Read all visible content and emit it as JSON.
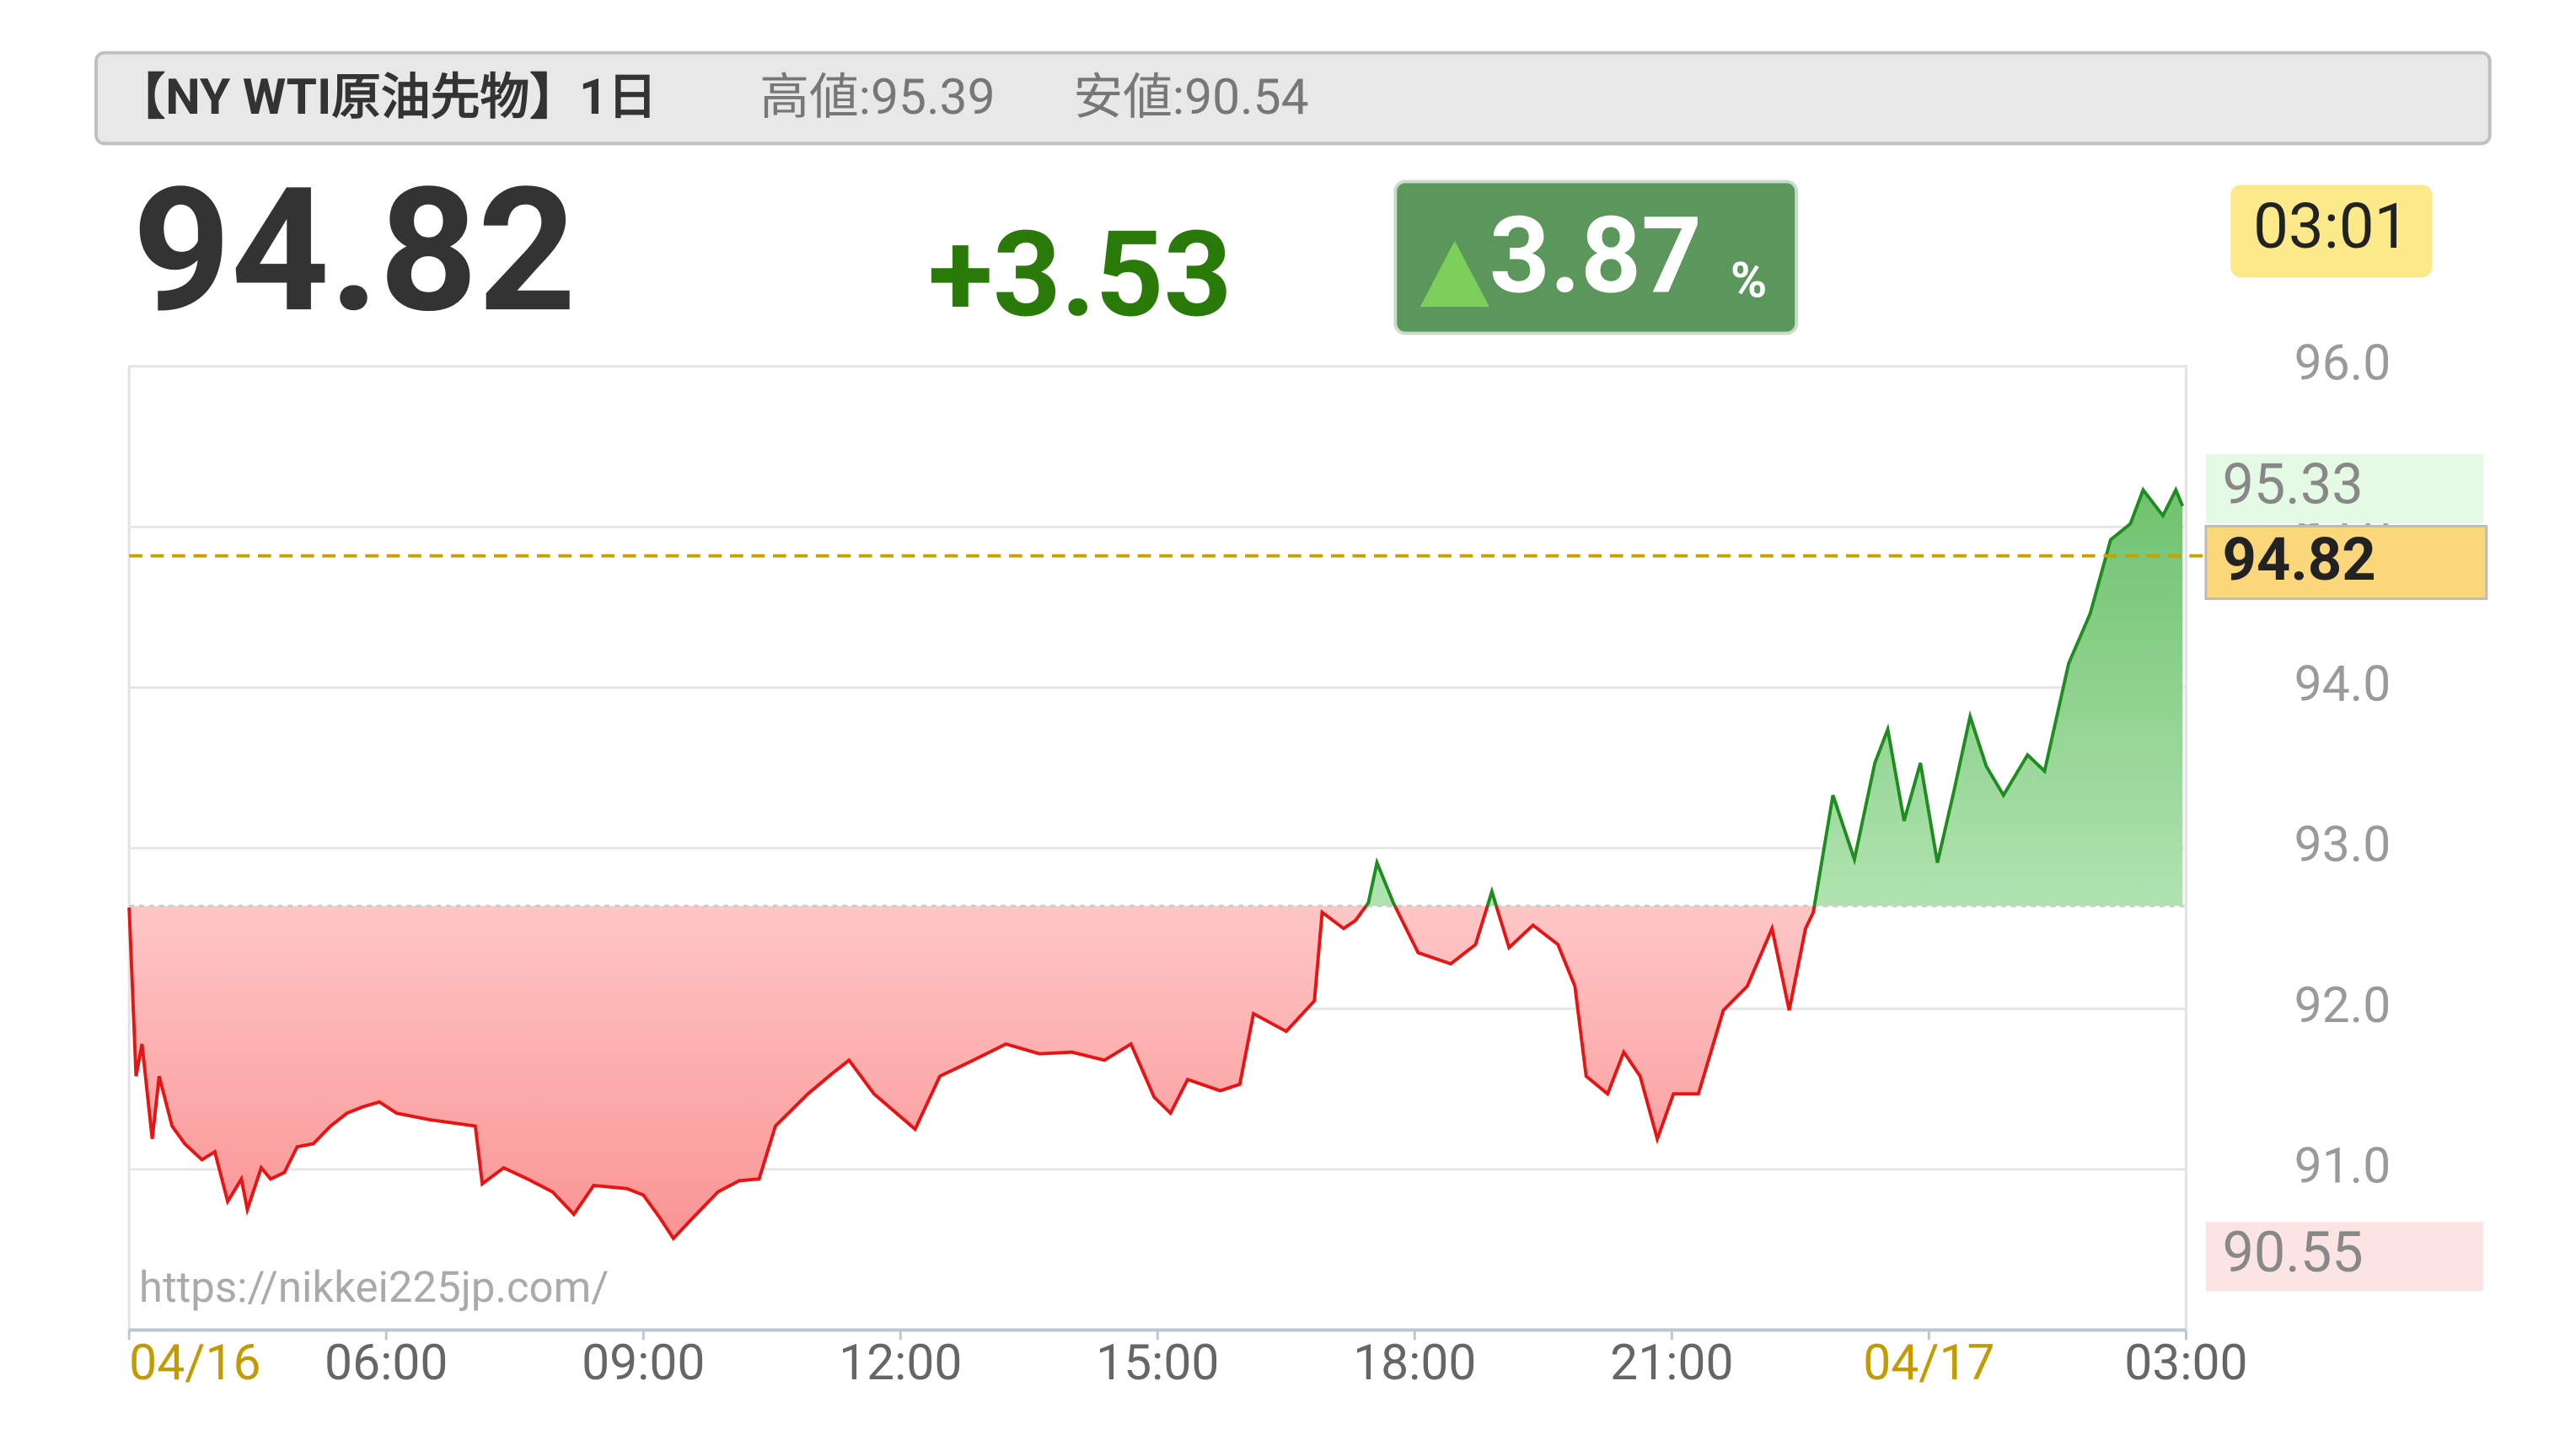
{
  "chart_data": {
    "type": "line",
    "title": "【NY WTI原油先物】1日",
    "high_label": "高値:95.39",
    "low_label": "安値:90.54",
    "price": 94.82,
    "change": "+3.53",
    "change_pct": 3.87,
    "pct_unit": "%",
    "time": "03:01",
    "watermark": "https://nikkei225jp.com/",
    "baseline": 92.64,
    "color_up": "#1e8c1e",
    "color_down": "#e81414",
    "xlim": [
      0,
      24
    ],
    "xticks": [
      {
        "value": 0,
        "label": "04/16"
      },
      {
        "value": 3,
        "label": "06:00"
      },
      {
        "value": 6,
        "label": "09:00"
      },
      {
        "value": 9,
        "label": "12:00"
      },
      {
        "value": 12,
        "label": "15:00"
      },
      {
        "value": 15,
        "label": "18:00"
      },
      {
        "value": 18,
        "label": "21:00"
      },
      {
        "value": 21,
        "label": "04/17"
      },
      {
        "value": 24,
        "label": "03:00"
      }
    ],
    "ylim": [
      90,
      96
    ],
    "yticks": [
      {
        "value": 91,
        "label": "91.0"
      },
      {
        "value": 92,
        "label": "92.0"
      },
      {
        "value": 93,
        "label": "93.0"
      },
      {
        "value": 94,
        "label": "94.0"
      },
      {
        "value": 95,
        "label": "95.0"
      },
      {
        "value": 96,
        "label": "96.0"
      }
    ],
    "markers": [
      {
        "value": 95.33,
        "label": "95.33",
        "color": "#e4fae4"
      },
      {
        "value": 90.55,
        "label": "90.55",
        "color": "#fce4e4"
      }
    ],
    "x": [
      0,
      0.08,
      0.15,
      0.27,
      0.35,
      0.5,
      0.65,
      0.85,
      1.0,
      1.15,
      1.31,
      1.38,
      1.54,
      1.65,
      1.81,
      1.96,
      2.15,
      2.35,
      2.54,
      2.73,
      2.92,
      3.12,
      3.5,
      4.04,
      4.12,
      4.37,
      4.65,
      4.94,
      5.19,
      5.42,
      5.81,
      6.0,
      6.19,
      6.35,
      6.58,
      6.87,
      7.12,
      7.35,
      7.54,
      7.92,
      8.21,
      8.4,
      8.69,
      9.17,
      9.46,
      9.85,
      10.23,
      10.62,
      11.0,
      11.38,
      11.69,
      11.96,
      12.15,
      12.35,
      12.73,
      12.96,
      13.12,
      13.5,
      13.83,
      13.92,
      14.17,
      14.31,
      14.46,
      14.56,
      14.75,
      15.04,
      15.42,
      15.71,
      15.9,
      16.1,
      16.38,
      16.67,
      16.87,
      17.0,
      17.25,
      17.44,
      17.63,
      17.83,
      18.02,
      18.31,
      18.6,
      18.88,
      19.17,
      19.37,
      19.56,
      19.65,
      19.88,
      20.13,
      20.37,
      20.52,
      20.71,
      20.9,
      21.1,
      21.29,
      21.48,
      21.67,
      21.87,
      22.15,
      22.35,
      22.63,
      22.88,
      23.12,
      23.35,
      23.5,
      23.73,
      23.88,
      23.96
    ],
    "values": [
      92.63,
      91.58,
      91.78,
      91.19,
      91.58,
      91.27,
      91.16,
      91.06,
      91.11,
      90.8,
      90.94,
      90.75,
      91.01,
      90.94,
      90.98,
      91.14,
      91.16,
      91.27,
      91.35,
      91.39,
      91.42,
      91.35,
      91.31,
      91.27,
      90.91,
      91.01,
      90.94,
      90.86,
      90.72,
      90.9,
      90.88,
      90.84,
      90.7,
      90.57,
      90.7,
      90.86,
      90.93,
      90.94,
      91.27,
      91.47,
      91.6,
      91.68,
      91.47,
      91.25,
      91.58,
      91.68,
      91.78,
      91.72,
      91.73,
      91.68,
      91.78,
      91.45,
      91.35,
      91.56,
      91.49,
      91.53,
      91.97,
      91.86,
      92.05,
      92.6,
      92.5,
      92.55,
      92.66,
      92.91,
      92.66,
      92.35,
      92.28,
      92.4,
      92.73,
      92.38,
      92.52,
      92.4,
      92.14,
      91.58,
      91.47,
      91.73,
      91.58,
      91.19,
      91.47,
      91.47,
      91.99,
      92.14,
      92.5,
      91.99,
      92.5,
      92.6,
      93.33,
      92.93,
      93.53,
      93.74,
      93.17,
      93.53,
      92.91,
      93.35,
      93.82,
      93.51,
      93.33,
      93.58,
      93.48,
      94.15,
      94.46,
      94.92,
      95.02,
      95.23,
      95.07,
      95.23,
      95.13
    ]
  }
}
